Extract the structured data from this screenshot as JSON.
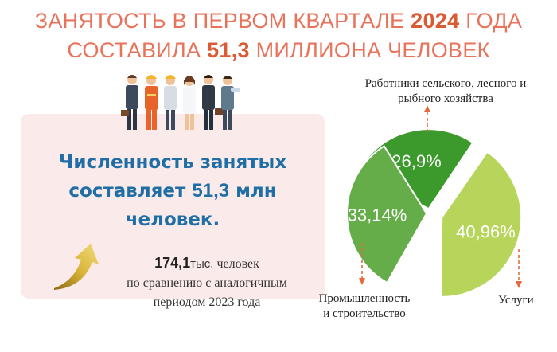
{
  "title": {
    "line1_pre": "ЗАНЯТОСТЬ В ПЕРВОМ КВАРТАЛЕ ",
    "line1_highlight": "2024",
    "line1_post": " ГОДА",
    "line2_pre": "СОСТАВИЛА ",
    "line2_highlight": "51,3",
    "line2_post": " МИЛЛИОНА ЧЕЛОВЕК"
  },
  "main_stat": {
    "line1": "Численность занятых",
    "line2_pre": "составляет ",
    "line2_num": "51,3",
    "line2_post": " млн",
    "line3": "человек."
  },
  "growth": {
    "value": "174,1",
    "unit": "тыс.",
    "suffix": " человек",
    "line2": "по сравнению с аналогичным",
    "line3": "периодом 2023 года"
  },
  "pie": {
    "slices": [
      {
        "label": "Работники сельского, лесного и рыбного хозяйства",
        "label_line1": "Работники сельского, лесного и",
        "label_line2": "рыбного хозяйства",
        "value_text": "26,9%",
        "value": 26.9,
        "color": "#3c9a2c"
      },
      {
        "label": "Промышленность и строительство",
        "label_line1": "Промышленность",
        "label_line2": "и строительство",
        "value_text": "33,14%",
        "value": 33.14,
        "color": "#64ad49"
      },
      {
        "label": "Услуги",
        "label_line1": "Услуги",
        "label_line2": "",
        "value_text": "40,96%",
        "value": 40.96,
        "color": "#b6d55a"
      }
    ]
  },
  "colors": {
    "title": "#e9735a",
    "highlight": "#d95c35",
    "stat_blue": "#1f6ea5",
    "card_bg": "#fbeaea",
    "dash_arrow": "#e36a3e"
  }
}
